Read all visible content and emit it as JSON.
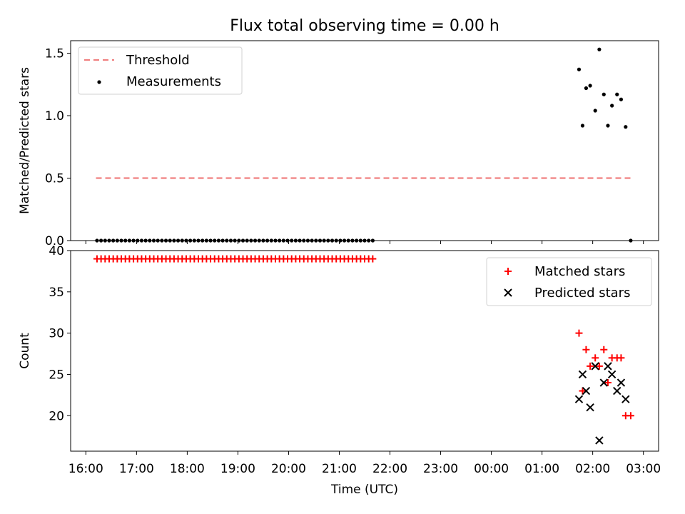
{
  "chart_data": {
    "title": "Flux total observing time = 0.00 h",
    "xlabel": "Time (UTC)",
    "x_ticks": [
      "16:00",
      "17:00",
      "18:00",
      "19:00",
      "20:00",
      "21:00",
      "22:00",
      "23:00",
      "00:00",
      "01:00",
      "02:00",
      "03:00"
    ],
    "x_range_hours": [
      15.7,
      27.3
    ],
    "panels": [
      {
        "type": "scatter",
        "ylabel": "Matched/Predicted stars",
        "ylim": [
          0,
          1.6
        ],
        "yticks": [
          "0.0",
          "0.5",
          "1.0",
          "1.5"
        ],
        "ytick_values": [
          0,
          0.5,
          1.0,
          1.5
        ],
        "legend_position": "top-left",
        "threshold": {
          "name": "Threshold",
          "value": 0.5,
          "x_start_hours": 16.2,
          "x_end_hours": 26.75,
          "color": "#f08080"
        },
        "series": [
          {
            "name": "Measurements",
            "color": "#000000",
            "points": [
              [
                16.22,
                0
              ],
              [
                16.3,
                0
              ],
              [
                16.38,
                0
              ],
              [
                16.46,
                0
              ],
              [
                16.54,
                0
              ],
              [
                16.62,
                0
              ],
              [
                16.7,
                0
              ],
              [
                16.78,
                0
              ],
              [
                16.86,
                0
              ],
              [
                16.94,
                0
              ],
              [
                17.02,
                0
              ],
              [
                17.1,
                0
              ],
              [
                17.18,
                0
              ],
              [
                17.26,
                0
              ],
              [
                17.34,
                0
              ],
              [
                17.42,
                0
              ],
              [
                17.5,
                0
              ],
              [
                17.58,
                0
              ],
              [
                17.66,
                0
              ],
              [
                17.74,
                0
              ],
              [
                17.82,
                0
              ],
              [
                17.9,
                0
              ],
              [
                17.98,
                0
              ],
              [
                18.06,
                0
              ],
              [
                18.14,
                0
              ],
              [
                18.22,
                0
              ],
              [
                18.3,
                0
              ],
              [
                18.38,
                0
              ],
              [
                18.46,
                0
              ],
              [
                18.54,
                0
              ],
              [
                18.62,
                0
              ],
              [
                18.7,
                0
              ],
              [
                18.78,
                0
              ],
              [
                18.86,
                0
              ],
              [
                18.94,
                0
              ],
              [
                19.02,
                0
              ],
              [
                19.1,
                0
              ],
              [
                19.18,
                0
              ],
              [
                19.26,
                0
              ],
              [
                19.34,
                0
              ],
              [
                19.42,
                0
              ],
              [
                19.5,
                0
              ],
              [
                19.58,
                0
              ],
              [
                19.66,
                0
              ],
              [
                19.74,
                0
              ],
              [
                19.82,
                0
              ],
              [
                19.9,
                0
              ],
              [
                19.98,
                0
              ],
              [
                20.06,
                0
              ],
              [
                20.14,
                0
              ],
              [
                20.22,
                0
              ],
              [
                20.3,
                0
              ],
              [
                20.38,
                0
              ],
              [
                20.46,
                0
              ],
              [
                20.54,
                0
              ],
              [
                20.62,
                0
              ],
              [
                20.7,
                0
              ],
              [
                20.78,
                0
              ],
              [
                20.86,
                0
              ],
              [
                20.94,
                0
              ],
              [
                21.02,
                0
              ],
              [
                21.1,
                0
              ],
              [
                21.18,
                0
              ],
              [
                21.26,
                0
              ],
              [
                21.34,
                0
              ],
              [
                21.42,
                0
              ],
              [
                21.5,
                0
              ],
              [
                21.58,
                0
              ],
              [
                21.66,
                0
              ],
              [
                25.73,
                1.37
              ],
              [
                25.8,
                0.92
              ],
              [
                25.87,
                1.22
              ],
              [
                25.95,
                1.24
              ],
              [
                26.05,
                1.04
              ],
              [
                26.13,
                1.53
              ],
              [
                26.22,
                1.17
              ],
              [
                26.3,
                0.92
              ],
              [
                26.38,
                1.08
              ],
              [
                26.48,
                1.17
              ],
              [
                26.56,
                1.13
              ],
              [
                26.65,
                0.91
              ],
              [
                26.75,
                0.0
              ]
            ]
          }
        ]
      },
      {
        "type": "scatter",
        "ylabel": "Count",
        "ylim": [
          15.7,
          40
        ],
        "yticks": [
          "20",
          "25",
          "30",
          "35",
          "40"
        ],
        "ytick_values": [
          20,
          25,
          30,
          35,
          40
        ],
        "legend_position": "top-right",
        "series": [
          {
            "name": "Matched stars",
            "marker": "plus",
            "color": "#ff0000",
            "points": [
              [
                16.22,
                39
              ],
              [
                16.3,
                39
              ],
              [
                16.38,
                39
              ],
              [
                16.46,
                39
              ],
              [
                16.54,
                39
              ],
              [
                16.62,
                39
              ],
              [
                16.7,
                39
              ],
              [
                16.78,
                39
              ],
              [
                16.86,
                39
              ],
              [
                16.94,
                39
              ],
              [
                17.02,
                39
              ],
              [
                17.1,
                39
              ],
              [
                17.18,
                39
              ],
              [
                17.26,
                39
              ],
              [
                17.34,
                39
              ],
              [
                17.42,
                39
              ],
              [
                17.5,
                39
              ],
              [
                17.58,
                39
              ],
              [
                17.66,
                39
              ],
              [
                17.74,
                39
              ],
              [
                17.82,
                39
              ],
              [
                17.9,
                39
              ],
              [
                17.98,
                39
              ],
              [
                18.06,
                39
              ],
              [
                18.14,
                39
              ],
              [
                18.22,
                39
              ],
              [
                18.3,
                39
              ],
              [
                18.38,
                39
              ],
              [
                18.46,
                39
              ],
              [
                18.54,
                39
              ],
              [
                18.62,
                39
              ],
              [
                18.7,
                39
              ],
              [
                18.78,
                39
              ],
              [
                18.86,
                39
              ],
              [
                18.94,
                39
              ],
              [
                19.02,
                39
              ],
              [
                19.1,
                39
              ],
              [
                19.18,
                39
              ],
              [
                19.26,
                39
              ],
              [
                19.34,
                39
              ],
              [
                19.42,
                39
              ],
              [
                19.5,
                39
              ],
              [
                19.58,
                39
              ],
              [
                19.66,
                39
              ],
              [
                19.74,
                39
              ],
              [
                19.82,
                39
              ],
              [
                19.9,
                39
              ],
              [
                19.98,
                39
              ],
              [
                20.06,
                39
              ],
              [
                20.14,
                39
              ],
              [
                20.22,
                39
              ],
              [
                20.3,
                39
              ],
              [
                20.38,
                39
              ],
              [
                20.46,
                39
              ],
              [
                20.54,
                39
              ],
              [
                20.62,
                39
              ],
              [
                20.7,
                39
              ],
              [
                20.78,
                39
              ],
              [
                20.86,
                39
              ],
              [
                20.94,
                39
              ],
              [
                21.02,
                39
              ],
              [
                21.1,
                39
              ],
              [
                21.18,
                39
              ],
              [
                21.26,
                39
              ],
              [
                21.34,
                39
              ],
              [
                21.42,
                39
              ],
              [
                21.5,
                39
              ],
              [
                21.58,
                39
              ],
              [
                21.66,
                39
              ],
              [
                25.73,
                30
              ],
              [
                25.8,
                23
              ],
              [
                25.87,
                28
              ],
              [
                25.95,
                26
              ],
              [
                26.05,
                27
              ],
              [
                26.13,
                26
              ],
              [
                26.22,
                28
              ],
              [
                26.3,
                24
              ],
              [
                26.38,
                27
              ],
              [
                26.48,
                27
              ],
              [
                26.56,
                27
              ],
              [
                26.65,
                20
              ],
              [
                26.75,
                20
              ]
            ]
          },
          {
            "name": "Predicted stars",
            "marker": "x",
            "color": "#000000",
            "points": [
              [
                25.73,
                22
              ],
              [
                25.8,
                25
              ],
              [
                25.87,
                23
              ],
              [
                25.95,
                21
              ],
              [
                26.05,
                26
              ],
              [
                26.13,
                17
              ],
              [
                26.22,
                24
              ],
              [
                26.3,
                26
              ],
              [
                26.38,
                25
              ],
              [
                26.48,
                23
              ],
              [
                26.56,
                24
              ],
              [
                26.65,
                22
              ]
            ]
          }
        ]
      }
    ]
  }
}
